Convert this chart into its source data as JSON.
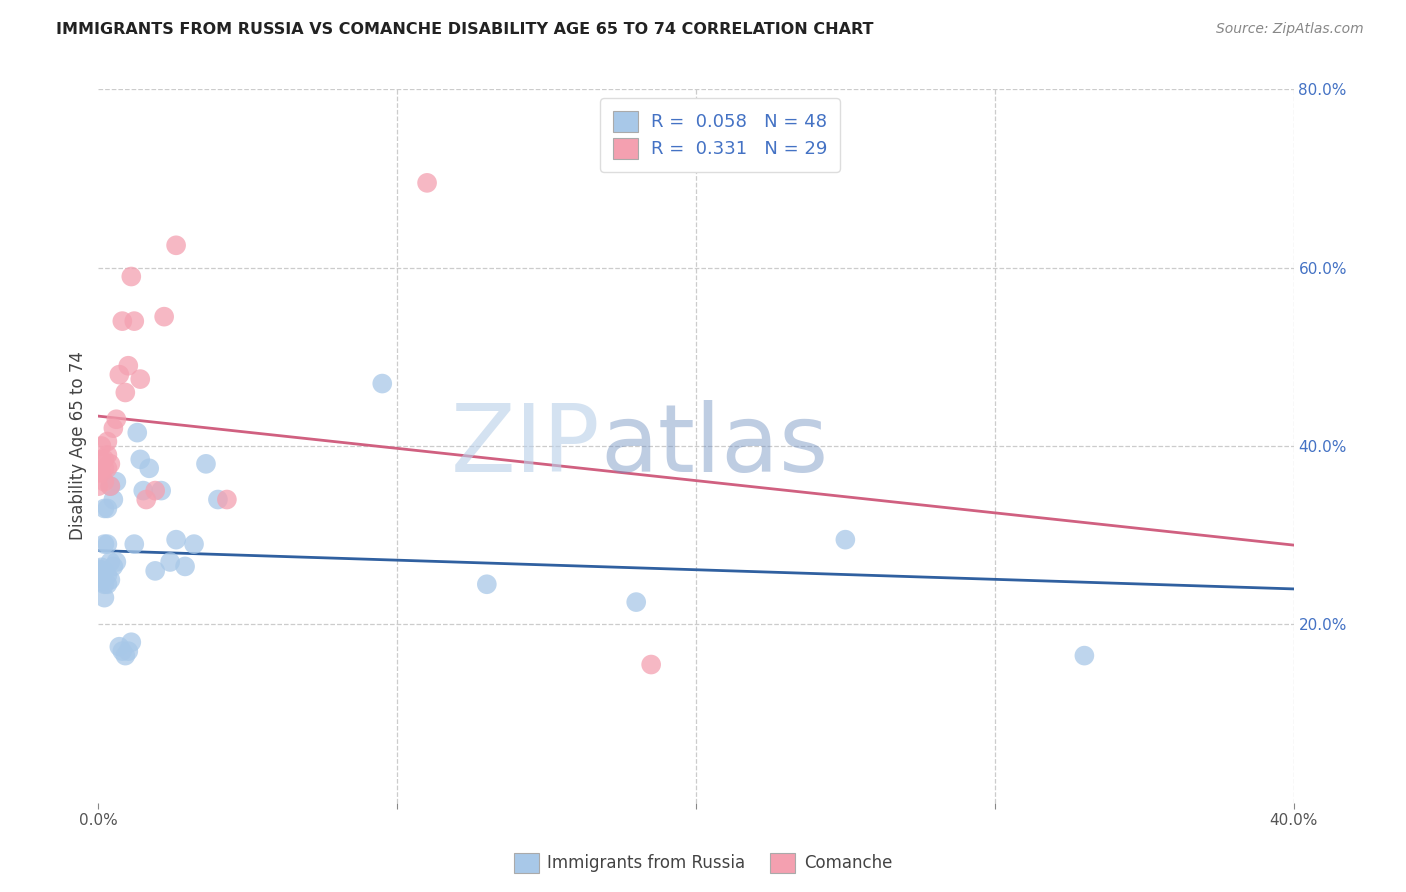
{
  "title": "IMMIGRANTS FROM RUSSIA VS COMANCHE DISABILITY AGE 65 TO 74 CORRELATION CHART",
  "source": "Source: ZipAtlas.com",
  "ylabel": "Disability Age 65 to 74",
  "x_min": 0.0,
  "x_max": 0.4,
  "y_min": 0.0,
  "y_max": 0.8,
  "y_ticks_right": [
    0.2,
    0.4,
    0.6,
    0.8
  ],
  "y_tick_labels_right": [
    "20.0%",
    "40.0%",
    "60.0%",
    "80.0%"
  ],
  "color_russia": "#a8c8e8",
  "color_russia_line": "#3060a0",
  "color_comanche": "#f4a0b0",
  "color_comanche_line": "#d06080",
  "russia_r": 0.058,
  "russia_n": 48,
  "comanche_r": 0.331,
  "comanche_n": 29,
  "russia_points_x": [
    0.0,
    0.0,
    0.0,
    0.001,
    0.001,
    0.001,
    0.001,
    0.001,
    0.001,
    0.002,
    0.002,
    0.002,
    0.002,
    0.002,
    0.003,
    0.003,
    0.003,
    0.003,
    0.004,
    0.004,
    0.004,
    0.005,
    0.005,
    0.006,
    0.006,
    0.007,
    0.008,
    0.009,
    0.01,
    0.011,
    0.012,
    0.013,
    0.014,
    0.015,
    0.017,
    0.019,
    0.021,
    0.024,
    0.026,
    0.029,
    0.032,
    0.036,
    0.04,
    0.095,
    0.13,
    0.18,
    0.25,
    0.33
  ],
  "russia_points_y": [
    0.255,
    0.258,
    0.262,
    0.248,
    0.252,
    0.255,
    0.258,
    0.261,
    0.264,
    0.23,
    0.245,
    0.26,
    0.29,
    0.33,
    0.245,
    0.255,
    0.29,
    0.33,
    0.25,
    0.27,
    0.355,
    0.265,
    0.34,
    0.27,
    0.36,
    0.175,
    0.17,
    0.165,
    0.17,
    0.18,
    0.29,
    0.415,
    0.385,
    0.35,
    0.375,
    0.26,
    0.35,
    0.27,
    0.295,
    0.265,
    0.29,
    0.38,
    0.34,
    0.47,
    0.245,
    0.225,
    0.295,
    0.165
  ],
  "comanche_points_x": [
    0.0,
    0.0,
    0.001,
    0.001,
    0.001,
    0.002,
    0.002,
    0.002,
    0.003,
    0.003,
    0.003,
    0.004,
    0.004,
    0.005,
    0.006,
    0.007,
    0.008,
    0.009,
    0.01,
    0.011,
    0.012,
    0.014,
    0.016,
    0.019,
    0.022,
    0.026,
    0.043,
    0.11,
    0.185
  ],
  "comanche_points_y": [
    0.355,
    0.37,
    0.37,
    0.385,
    0.4,
    0.36,
    0.375,
    0.385,
    0.375,
    0.39,
    0.405,
    0.355,
    0.38,
    0.42,
    0.43,
    0.48,
    0.54,
    0.46,
    0.49,
    0.59,
    0.54,
    0.475,
    0.34,
    0.35,
    0.545,
    0.625,
    0.34,
    0.695,
    0.155
  ]
}
